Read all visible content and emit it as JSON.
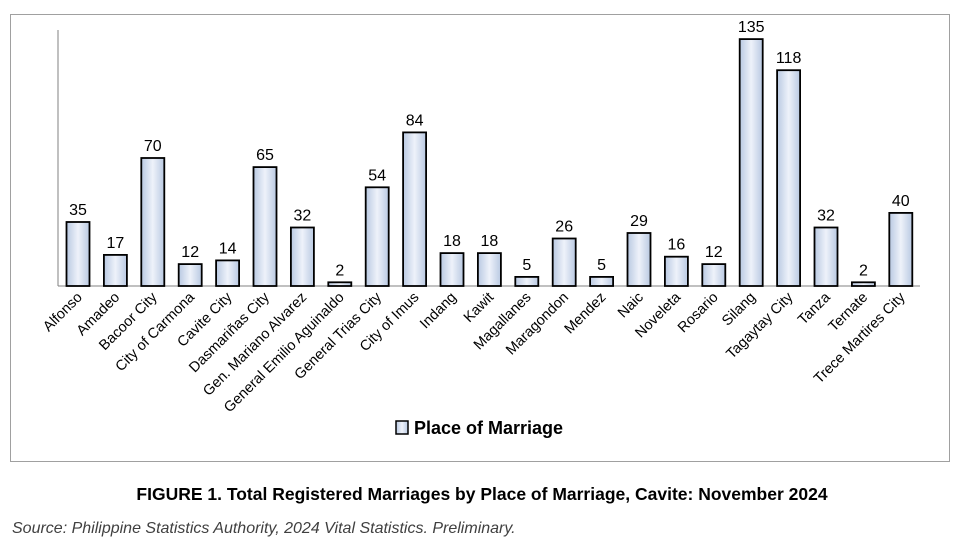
{
  "chart_data": {
    "type": "bar",
    "title": "",
    "xlabel": "",
    "ylabel": "",
    "categories": [
      "Alfonso",
      "Amadeo",
      "Bacoor City",
      "City of Carmona",
      "Cavite City",
      "Dasmariñas City",
      "Gen. Mariano Alvarez",
      "General Emilio Aguinaldo",
      "General Trias City",
      "City of Imus",
      "Indang",
      "Kawit",
      "Magallanes",
      "Maragondon",
      "Mendez",
      "Naic",
      "Noveleta",
      "Rosario",
      "Silang",
      "Tagaytay City",
      "Tanza",
      "Ternate",
      "Trece Martires City"
    ],
    "series": [
      {
        "name": "Place of Marriage",
        "values": [
          35,
          17,
          70,
          12,
          14,
          65,
          32,
          2,
          54,
          84,
          18,
          18,
          5,
          26,
          5,
          29,
          16,
          12,
          135,
          118,
          32,
          2,
          40
        ]
      }
    ],
    "ylim": [
      0,
      140
    ],
    "grid": false,
    "legend": "bottom-center",
    "data_labels": true,
    "bar_color": "#dfe8f5",
    "bar_edge_color": "#000000"
  },
  "caption": "FIGURE 1. Total Registered Marriages by Place of Marriage, Cavite: November 2024",
  "source": "Source: Philippine Statistics Authority, 2024 Vital Statistics. Preliminary."
}
